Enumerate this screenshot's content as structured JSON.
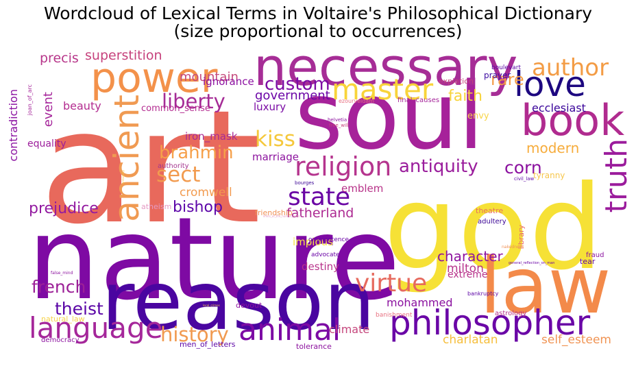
{
  "title_line1": "Wordcloud of Lexical Terms in Voltaire's Philosophical Dictionary",
  "title_line2": "(size proportional to occurrences)",
  "words": [
    {
      "text": "art",
      "color": "#e8695c"
    },
    {
      "text": "nature",
      "color": "#7e0aa3"
    },
    {
      "text": "soul",
      "color": "#a6229a"
    },
    {
      "text": "god",
      "color": "#f6e136"
    },
    {
      "text": "reason",
      "color": "#4a05a0"
    },
    {
      "text": "law",
      "color": "#f38a4a"
    },
    {
      "text": "necessary",
      "color": "#a62d96"
    },
    {
      "text": "power",
      "color": "#f3914a"
    },
    {
      "text": "book",
      "color": "#b02b8f"
    },
    {
      "text": "love",
      "color": "#1d0880"
    },
    {
      "text": "philosopher",
      "color": "#6a06a6"
    },
    {
      "text": "ancient",
      "color": "#f09a52"
    },
    {
      "text": "truth",
      "color": "#9b1c9c"
    },
    {
      "text": "master",
      "color": "#f8d43a"
    },
    {
      "text": "animal",
      "color": "#7c0aa4"
    },
    {
      "text": "language",
      "color": "#a5279a"
    },
    {
      "text": "religion",
      "color": "#b5348e"
    },
    {
      "text": "author",
      "color": "#f39c45"
    },
    {
      "text": "state",
      "color": "#6a04a4"
    },
    {
      "text": "virtue",
      "color": "#e66a5e"
    },
    {
      "text": "liberty",
      "color": "#a52b96"
    },
    {
      "text": "sect",
      "color": "#f29b4f"
    },
    {
      "text": "kiss",
      "color": "#f5c83b"
    },
    {
      "text": "history",
      "color": "#f19a50"
    },
    {
      "text": "antiquity",
      "color": "#9a1d9c"
    },
    {
      "text": "brahmin",
      "color": "#f6a04a"
    },
    {
      "text": "corn",
      "color": "#8b119f"
    },
    {
      "text": "custom",
      "color": "#7c0aa4"
    },
    {
      "text": "french",
      "color": "#9c2097"
    },
    {
      "text": "theist",
      "color": "#5a05a6"
    },
    {
      "text": "prejudice",
      "color": "#931aa0"
    },
    {
      "text": "bishop",
      "color": "#5c05a8"
    },
    {
      "text": "faith",
      "color": "#f7d33a"
    },
    {
      "text": "rare",
      "color": "#f39c45"
    },
    {
      "text": "character",
      "color": "#8e139e"
    },
    {
      "text": "modern",
      "color": "#f6ac3c"
    },
    {
      "text": "fatherland",
      "color": "#ad2a92"
    },
    {
      "text": "government",
      "color": "#6a04a6"
    },
    {
      "text": "superstition",
      "color": "#c6417c"
    },
    {
      "text": "mountain",
      "color": "#c54a7c"
    },
    {
      "text": "precis",
      "color": "#b7368a"
    },
    {
      "text": "event",
      "color": "#a5259a"
    },
    {
      "text": "beauty",
      "color": "#b32c8f"
    },
    {
      "text": "ignorance",
      "color": "#8b0fa0"
    },
    {
      "text": "luxury",
      "color": "#7a0aa4"
    },
    {
      "text": "contradiction",
      "color": "#8a10a0"
    },
    {
      "text": "iron_mask",
      "color": "#a82a94"
    },
    {
      "text": "cromwell",
      "color": "#f29b4f"
    },
    {
      "text": "marriage",
      "color": "#8c139e"
    },
    {
      "text": "emblem",
      "color": "#b73188"
    },
    {
      "text": "mohammed",
      "color": "#8a109f"
    },
    {
      "text": "milton",
      "color": "#b7358c"
    },
    {
      "text": "climate",
      "color": "#c5467c"
    },
    {
      "text": "charlatan",
      "color": "#f6be3c"
    },
    {
      "text": "self_esteem",
      "color": "#f09454"
    },
    {
      "text": "ecclesiast",
      "color": "#3a049a"
    },
    {
      "text": "common_sense",
      "color": "#b32c90"
    },
    {
      "text": "impious",
      "color": "#f7e545"
    },
    {
      "text": "destiny",
      "color": "#b7328a"
    },
    {
      "text": "extreme",
      "color": "#b7328a"
    },
    {
      "text": "equality",
      "color": "#9c1d9b"
    },
    {
      "text": "envy",
      "color": "#f7d54a"
    },
    {
      "text": "tyranny",
      "color": "#f6c64c"
    },
    {
      "text": "prayer",
      "color": "#3b0aa0"
    },
    {
      "text": "expiation",
      "color": "#c4407c"
    },
    {
      "text": "library",
      "color": "#e86b70"
    },
    {
      "text": "theatre",
      "color": "#e87060"
    },
    {
      "text": "adultery",
      "color": "#3a0595"
    },
    {
      "text": "friendship",
      "color": "#f09056"
    },
    {
      "text": "atheism",
      "color": "#e59bc3"
    },
    {
      "text": "authority",
      "color": "#a4358e"
    },
    {
      "text": "tear",
      "color": "#5c05a6"
    },
    {
      "text": "fraud",
      "color": "#8c129f"
    },
    {
      "text": "devout",
      "color": "#8c129f"
    },
    {
      "text": "tolerance",
      "color": "#8c129f"
    },
    {
      "text": "democracy",
      "color": "#8c129f"
    },
    {
      "text": "men_of_letters",
      "color": "#5c05a6"
    },
    {
      "text": "natural_law",
      "color": "#f6d34c"
    },
    {
      "text": "astrology",
      "color": "#b7358c"
    },
    {
      "text": "banishment",
      "color": "#e87080"
    },
    {
      "text": "bankruptcy",
      "color": "#5c05a6"
    },
    {
      "text": "advocate",
      "color": "#6a04a6"
    },
    {
      "text": "omnipotence",
      "color": "#6a04a6"
    },
    {
      "text": "boulevart",
      "color": "#5c05a6"
    },
    {
      "text": "final_causes",
      "color": "#a5259a"
    },
    {
      "text": "joan_of_arc",
      "color": "#a5259a"
    },
    {
      "text": "ezourveidam",
      "color": "#e87080"
    },
    {
      "text": "helvetia",
      "color": "#8c129f"
    },
    {
      "text": "free_will",
      "color": "#c4407c"
    },
    {
      "text": "bourges",
      "color": "#3a0595"
    },
    {
      "text": "civil_law",
      "color": "#5c05a6"
    },
    {
      "text": "nakedness",
      "color": "#f09056"
    },
    {
      "text": "general_reflection_on_man",
      "color": "#6a04a6"
    },
    {
      "text": "false_mind",
      "color": "#8c129f"
    },
    {
      "text": "limits_of_the_human_mind",
      "color": "#e59bc3"
    },
    {
      "text": "local_crimes",
      "color": "#f6c64c"
    },
    {
      "text": "ambiguity",
      "color": "#f6c64c"
    }
  ]
}
